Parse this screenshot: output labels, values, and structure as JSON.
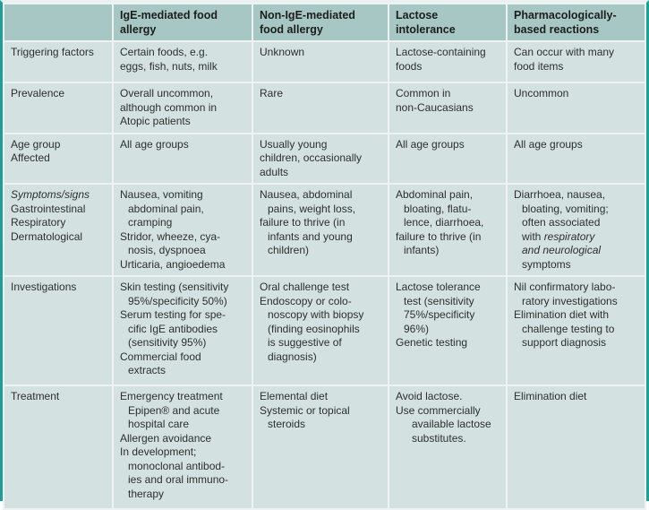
{
  "colors": {
    "border_teal": "#1f9e97",
    "header_bg": "#a6c7c4",
    "cell_bg": "#d3e2e1",
    "gutter": "#eef2f2",
    "text": "#2e2e2e"
  },
  "table": {
    "corner": "",
    "columns": [
      {
        "name": "ige-mediated-food-allergy",
        "lines": [
          "IgE-mediated food",
          "allergy"
        ]
      },
      {
        "name": "non-ige-mediated-food-allergy",
        "lines": [
          "Non-IgE-mediated",
          "food allergy"
        ]
      },
      {
        "name": "lactose-intolerance",
        "lines": [
          "Lactose",
          "intolerance"
        ]
      },
      {
        "name": "pharmacologically-based-reactions",
        "lines": [
          "Pharmacologically-",
          "based reactions"
        ]
      }
    ],
    "rows": [
      {
        "label": {
          "lines": [
            "Triggering factors"
          ]
        },
        "cells": [
          {
            "lines": [
              "Certain foods, e.g.",
              "eggs, fish, nuts, milk"
            ]
          },
          {
            "lines": [
              "Unknown"
            ]
          },
          {
            "lines": [
              "Lactose-containing",
              "foods"
            ]
          },
          {
            "lines": [
              "Can occur with many",
              "food items"
            ]
          }
        ]
      },
      {
        "label": {
          "lines": [
            "Prevalence"
          ]
        },
        "cells": [
          {
            "lines": [
              "Overall uncommon,",
              "although common in",
              "Atopic patients"
            ]
          },
          {
            "lines": [
              "Rare"
            ]
          },
          {
            "lines": [
              "Common in",
              "non-Caucasians"
            ]
          },
          {
            "lines": [
              "Uncommon"
            ]
          }
        ]
      },
      {
        "label": {
          "lines": [
            "Age group",
            "Affected"
          ]
        },
        "cells": [
          {
            "lines": [
              "All age groups"
            ]
          },
          {
            "lines": [
              "Usually young",
              "children, occasionally",
              "adults"
            ]
          },
          {
            "lines": [
              "All age groups"
            ]
          },
          {
            "lines": [
              "All age groups"
            ]
          }
        ]
      },
      {
        "label": {
          "lines": [
            {
              "t": "Symptoms/signs",
              "i": true
            },
            "Gastrointestinal",
            "Respiratory",
            "Dermatological"
          ]
        },
        "cells": [
          {
            "lines": [
              "Nausea, vomiting",
              {
                "t": "abdominal pain,",
                "ind": 1
              },
              {
                "t": "cramping",
                "ind": 1
              },
              "Stridor, wheeze, cya-",
              {
                "t": "nosis, dyspnoea",
                "ind": 1
              },
              "Urticaria, angioedema"
            ]
          },
          {
            "lines": [
              "Nausea, abdominal",
              {
                "t": "pains, weight loss,",
                "ind": 1
              },
              "failure to thrive (in",
              {
                "t": "infants and young",
                "ind": 1
              },
              {
                "t": "children)",
                "ind": 1
              }
            ]
          },
          {
            "lines": [
              "Abdominal pain,",
              {
                "t": "bloating, flatu-",
                "ind": 1
              },
              {
                "t": "lence, diarrhoea,",
                "ind": 1
              },
              "failure to thrive (in",
              {
                "t": "infants)",
                "ind": 1
              }
            ]
          },
          {
            "lines": [
              "Diarrhoea, nausea,",
              {
                "t": "bloating, vomiting;",
                "ind": 1
              },
              {
                "t": "often associated",
                "ind": 1
              },
              {
                "ind": 1,
                "segs": [
                  {
                    "t": "with "
                  },
                  {
                    "t": "respiratory",
                    "i": true
                  }
                ]
              },
              {
                "t": "and neurological",
                "i": true,
                "ind": 1
              },
              {
                "t": "symptoms",
                "ind": 1
              }
            ]
          }
        ]
      },
      {
        "label": {
          "lines": [
            "Investigations"
          ]
        },
        "cells": [
          {
            "lines": [
              "Skin testing (sensitivity",
              {
                "t": "95%/specificity 50%)",
                "ind": 1
              },
              "Serum testing for spe-",
              {
                "t": "cific IgE antibodies",
                "ind": 1
              },
              {
                "t": "(sensitivity 95%)",
                "ind": 1
              },
              "Commercial food",
              {
                "t": "extracts",
                "ind": 1
              }
            ]
          },
          {
            "lines": [
              "Oral challenge test",
              "Endoscopy or colo-",
              {
                "t": "noscopy with biopsy",
                "ind": 1
              },
              {
                "t": "(finding eosinophils",
                "ind": 1
              },
              {
                "t": "is suggestive of",
                "ind": 1
              },
              {
                "t": "diagnosis)",
                "ind": 1
              }
            ]
          },
          {
            "lines": [
              "Lactose tolerance",
              {
                "t": "test (sensitivity",
                "ind": 1
              },
              {
                "t": "75%/specificity",
                "ind": 1
              },
              {
                "t": "96%)",
                "ind": 1
              },
              "Genetic testing"
            ]
          },
          {
            "lines": [
              "Nil confirmatory labo-",
              {
                "t": "ratory investigations",
                "ind": 1
              },
              "Elimination diet with",
              {
                "t": "challenge testing to",
                "ind": 1
              },
              {
                "t": "support diagnosis",
                "ind": 1
              }
            ]
          }
        ]
      },
      {
        "label": {
          "lines": [
            "Treatment"
          ]
        },
        "cells": [
          {
            "lines": [
              "Emergency treatment",
              {
                "t": "Epipen® and acute",
                "ind": 1
              },
              {
                "t": "hospital care",
                "ind": 1
              },
              "Allergen avoidance",
              "In development;",
              {
                "t": "monoclonal antibod-",
                "ind": 1
              },
              {
                "t": "ies and oral immuno-",
                "ind": 1
              },
              {
                "t": "therapy",
                "ind": 1
              }
            ]
          },
          {
            "lines": [
              "Elemental diet",
              "Systemic or topical",
              {
                "t": "steroids",
                "ind": 1
              }
            ]
          },
          {
            "lines": [
              "Avoid lactose.",
              "Use commercially",
              {
                "t": "available lactose",
                "ind": 2
              },
              {
                "t": "substitutes.",
                "ind": 2
              }
            ]
          },
          {
            "lines": [
              "Elimination diet"
            ]
          }
        ]
      }
    ]
  }
}
